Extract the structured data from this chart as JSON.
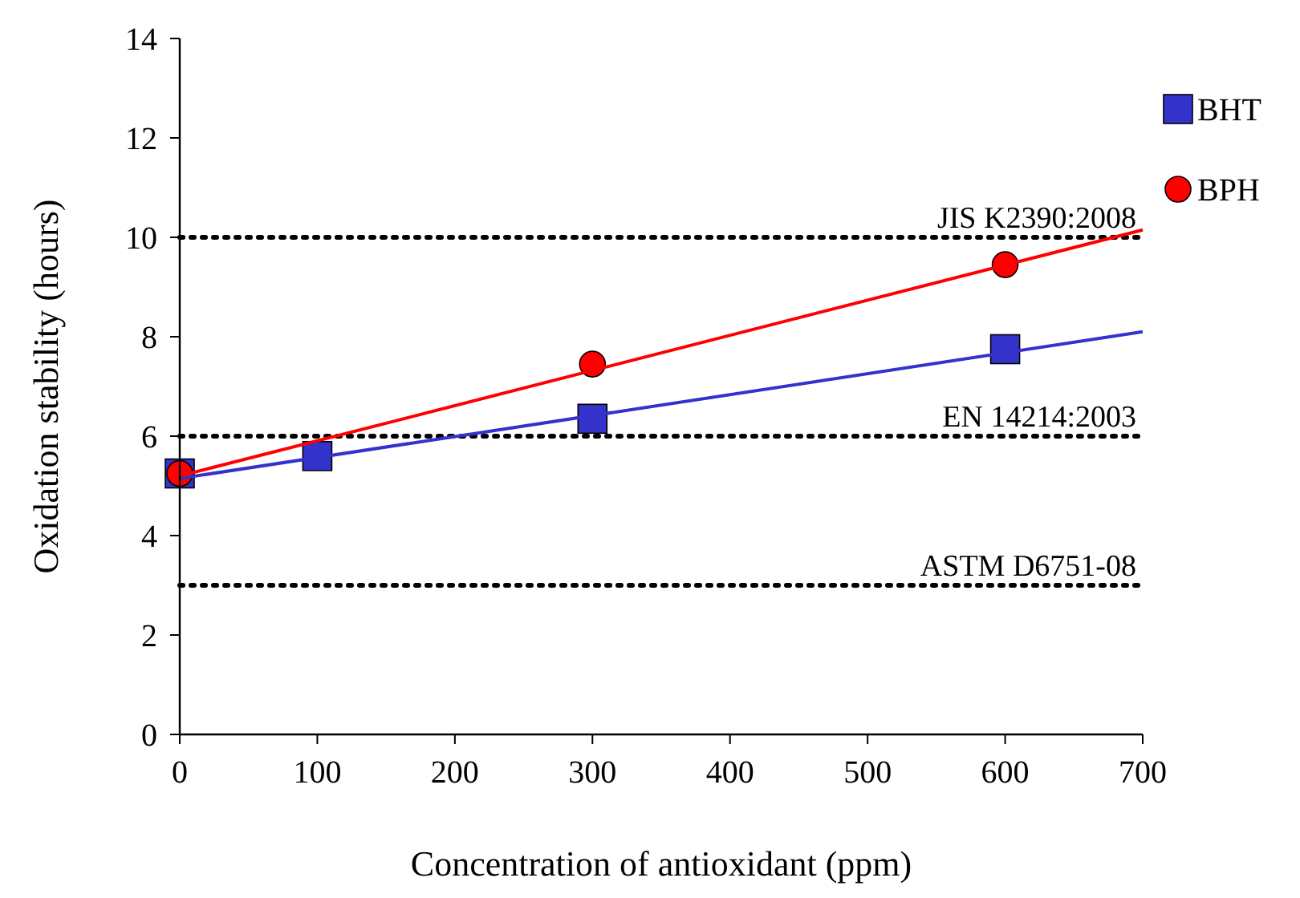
{
  "chart_data": {
    "type": "scatter",
    "xlabel": "Concentration of antioxidant (ppm)",
    "ylabel": "Oxidation stability (hours)",
    "xlim": [
      0,
      700
    ],
    "ylim": [
      0,
      14
    ],
    "xticks": [
      0,
      100,
      200,
      300,
      400,
      500,
      600,
      700
    ],
    "yticks": [
      0,
      2,
      4,
      6,
      8,
      10,
      12,
      14
    ],
    "grid": false,
    "legend": "top right",
    "series": [
      {
        "name": "BHT",
        "color": "#3333cc",
        "marker": "square",
        "x": [
          0,
          100,
          300,
          600
        ],
        "values": [
          5.25,
          5.6,
          6.35,
          7.75
        ]
      },
      {
        "name": "BPH",
        "color": "#ff0000",
        "marker": "circle",
        "x": [
          0,
          300,
          600
        ],
        "values": [
          5.25,
          7.45,
          9.45
        ]
      },
      {
        "type": "line",
        "color": "#3333cc",
        "marker": "none",
        "x": [
          0,
          700
        ],
        "values": [
          5.15,
          8.1
        ]
      },
      {
        "type": "line",
        "color": "#ff0000",
        "marker": "none",
        "x": [
          0,
          700
        ],
        "values": [
          5.2,
          10.15
        ]
      }
    ],
    "ref_lines": [
      {
        "axis": "y",
        "value": 10,
        "color": "#000000",
        "line_style": "dotted"
      },
      {
        "axis": "y",
        "value": 6,
        "color": "#000000",
        "line_style": "dotted"
      },
      {
        "axis": "y",
        "value": 3,
        "color": "#000000",
        "line_style": "dotted"
      }
    ],
    "annotations": [
      {
        "text": "JIS K2390:2008",
        "y": 10
      },
      {
        "text": "EN 14214:2003",
        "y": 6
      },
      {
        "text": "ASTM D6751-08",
        "y": 3
      }
    ]
  }
}
